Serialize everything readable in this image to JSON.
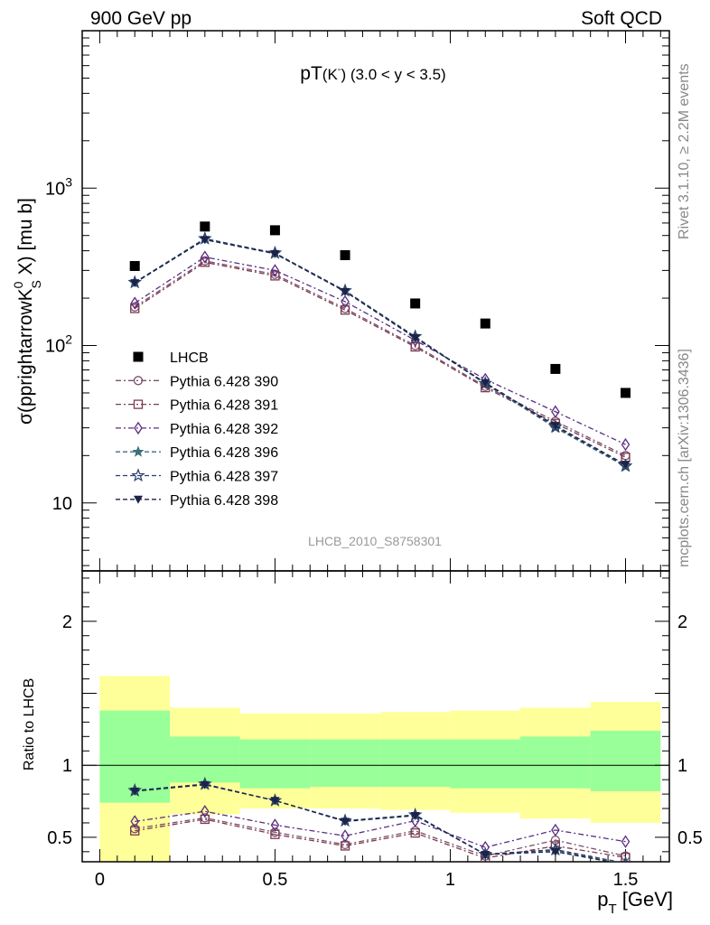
{
  "header": {
    "left": "900 GeV pp",
    "right": "Soft QCD"
  },
  "side": {
    "rivet": "Rivet 3.1.10, ≥ 2.2M events",
    "url": "mcplots.cern.ch [arXiv:1306.3436]"
  },
  "chart_data": {
    "type": "scatter",
    "title_main": "pT",
    "title_particle": "(K",
    "title_charge": "-",
    "title_close": ")",
    "title_range": "(3.0 < y < 3.5)",
    "analysis": "LHCB_2010_S8758301",
    "ylabel_pre": "σ(pprightarrowK",
    "ylabel_sup": "0",
    "ylabel_sub": "S",
    "ylabel_post": " X) [mu b]",
    "ratio_ylabel": "Ratio to LHCB",
    "xlabel_main": "p",
    "xlabel_sub": "T",
    "xlabel_unit": " [GeV]",
    "xlim": [
      -0.05,
      1.625
    ],
    "ylim": [
      3.7,
      10000
    ],
    "yscale": "log",
    "ratio_ylim": [
      0.33,
      2.35
    ],
    "x_ticks": [
      0,
      0.5,
      1,
      1.5
    ],
    "x_tick_labels": [
      "0",
      "0.5",
      "1",
      "1.5"
    ],
    "y_tick_labels": [
      "10",
      "10",
      "10"
    ],
    "y_tick_exponents": [
      "",
      "2",
      "3"
    ],
    "ratio_tick_labels": [
      "0.5",
      "1",
      "2"
    ],
    "x": [
      0.1,
      0.3,
      0.5,
      0.7,
      0.9,
      1.1,
      1.3,
      1.5
    ],
    "bin_edges": [
      0,
      0.2,
      0.4,
      0.6,
      0.8,
      1.0,
      1.2,
      1.4,
      1.6
    ],
    "data": {
      "name": "LHCB",
      "values": [
        320,
        570,
        540,
        375,
        185,
        138,
        71,
        50
      ],
      "color": "#000000",
      "band_inner": [
        [
          0.74,
          1.38
        ],
        [
          0.88,
          1.2
        ],
        [
          0.84,
          1.18
        ],
        [
          0.85,
          1.18
        ],
        [
          0.85,
          1.18
        ],
        [
          0.84,
          1.18
        ],
        [
          0.84,
          1.2
        ],
        [
          0.82,
          1.24
        ]
      ],
      "band_outer": [
        [
          0.2,
          1.62
        ],
        [
          0.66,
          1.4
        ],
        [
          0.7,
          1.36
        ],
        [
          0.7,
          1.36
        ],
        [
          0.69,
          1.37
        ],
        [
          0.67,
          1.38
        ],
        [
          0.63,
          1.4
        ],
        [
          0.6,
          1.44
        ]
      ]
    },
    "series": [
      {
        "name": "Pythia 6.428 390",
        "marker": "circle",
        "dash": "6,3,2,3",
        "color": "#7b4f6f",
        "values": [
          176,
          345,
          283,
          172,
          100,
          55,
          33,
          20
        ],
        "ratio": [
          0.56,
          0.635,
          0.535,
          0.45,
          0.545,
          0.37,
          0.48,
          0.37
        ]
      },
      {
        "name": "Pythia 6.428 391",
        "marker": "square",
        "dash": "6,3,2,3",
        "color": "#7b3b4f",
        "values": [
          172,
          338,
          277,
          168,
          98,
          54,
          32,
          19.5
        ],
        "ratio": [
          0.545,
          0.625,
          0.52,
          0.44,
          0.53,
          0.355,
          0.44,
          0.36
        ]
      },
      {
        "name": "Pythia 6.428 392",
        "marker": "diamond",
        "dash": "6,3,2,3",
        "color": "#5a2d82",
        "values": [
          186,
          365,
          300,
          190,
          108,
          61,
          38,
          23.5
        ],
        "ratio": [
          0.61,
          0.68,
          0.585,
          0.51,
          0.615,
          0.43,
          0.55,
          0.47
        ]
      },
      {
        "name": "Pythia 6.428 396",
        "marker": "star",
        "dash": "5,3",
        "color": "#3d6e7a",
        "values": [
          250,
          475,
          385,
          222,
          113,
          57,
          30,
          17
        ],
        "ratio": [
          0.82,
          0.865,
          0.755,
          0.615,
          0.655,
          0.38,
          0.41,
          0.31
        ]
      },
      {
        "name": "Pythia 6.428 397",
        "marker": "star-open",
        "dash": "5,3",
        "color": "#2b3f6b",
        "values": [
          252,
          478,
          387,
          223,
          114,
          57.5,
          30.5,
          17.2
        ],
        "ratio": [
          0.825,
          0.87,
          0.755,
          0.615,
          0.655,
          0.382,
          0.415,
          0.32
        ]
      },
      {
        "name": "Pythia 6.428 398",
        "marker": "triangle-down",
        "dash": "5,3",
        "color": "#1b2347",
        "values": [
          250,
          470,
          383,
          220,
          112,
          58,
          31,
          17.5
        ],
        "ratio": [
          0.82,
          0.865,
          0.755,
          0.61,
          0.65,
          0.38,
          0.4,
          0.31
        ]
      }
    ],
    "band_colors": {
      "inner": "#99ff99",
      "outer": "#ffff99"
    }
  }
}
